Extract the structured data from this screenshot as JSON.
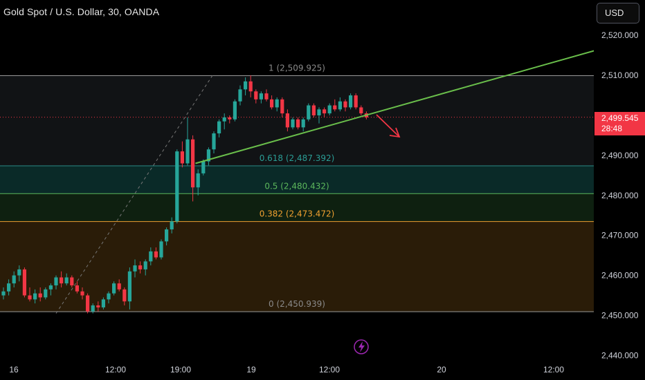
{
  "header": {
    "title": "Gold Spot / U.S. Dollar, 30, OANDA"
  },
  "toolbar": {
    "currency_label": "USD"
  },
  "last_price": {
    "price": "2,499.545",
    "countdown": "28:48"
  },
  "colors": {
    "background": "#000000",
    "up": "#26a69a",
    "down": "#f23645",
    "trendline": "#6abf4b",
    "fib_0618": "#2a8a86",
    "fib_05": "#5cb85c",
    "fib_0382": "#f0a030",
    "fib_edge": "#9a9a9a",
    "zone_upper": "#111315",
    "zone_0618_05": "#0a2a28",
    "zone_05_0382": "#0e2010",
    "zone_lower": "#2a1c08",
    "flash_icon": "#9c27b0"
  },
  "chart_data": {
    "type": "candlestick",
    "symbol": "Gold Spot / U.S. Dollar",
    "interval": "30",
    "source": "OANDA",
    "ylim": [
      2441,
      2523
    ],
    "y_ticks": [
      "2,440.000",
      "2,450.000",
      "2,460.000",
      "2,470.000",
      "2,480.000",
      "2,490.000",
      "2,500.000",
      "2,510.000",
      "2,520.000"
    ],
    "x_ticks": [
      "16",
      "12:00",
      "19:00",
      "19",
      "12:00",
      "20",
      "12:00"
    ],
    "fib_levels": [
      {
        "ratio": 1,
        "label": "1 (2,509.925)",
        "value": 2509.925
      },
      {
        "ratio": 0.618,
        "label": "0.618 (2,487.392)",
        "value": 2487.392
      },
      {
        "ratio": 0.5,
        "label": "0.5 (2,480.432)",
        "value": 2480.432
      },
      {
        "ratio": 0.382,
        "label": "0.382 (2,473.472)",
        "value": 2473.472
      },
      {
        "ratio": 0,
        "label": "0 (2,450.939)",
        "value": 2450.939
      }
    ],
    "last_price": 2499.545,
    "candles": [
      [
        2455.0,
        2457.0,
        2454.0,
        2456.0
      ],
      [
        2456.0,
        2459.0,
        2455.0,
        2458.0
      ],
      [
        2458.0,
        2461.0,
        2457.0,
        2460.0
      ],
      [
        2460.0,
        2462.5,
        2458.5,
        2461.5
      ],
      [
        2461.5,
        2462.0,
        2454.5,
        2455.0
      ],
      [
        2455.0,
        2457.0,
        2453.5,
        2454.0
      ],
      [
        2454.0,
        2456.5,
        2453.0,
        2455.5
      ],
      [
        2455.5,
        2457.0,
        2453.5,
        2454.5
      ],
      [
        2454.5,
        2457.0,
        2454.0,
        2456.5
      ],
      [
        2456.5,
        2458.0,
        2455.0,
        2457.5
      ],
      [
        2457.5,
        2460.0,
        2456.5,
        2459.5
      ],
      [
        2459.5,
        2461.0,
        2457.0,
        2458.0
      ],
      [
        2458.0,
        2460.5,
        2457.5,
        2459.5
      ],
      [
        2459.5,
        2460.0,
        2457.0,
        2457.5
      ],
      [
        2457.5,
        2458.5,
        2455.5,
        2456.0
      ],
      [
        2456.0,
        2457.0,
        2454.0,
        2455.0
      ],
      [
        2455.0,
        2455.5,
        2450.5,
        2451.0
      ],
      [
        2451.0,
        2453.0,
        2450.5,
        2452.5
      ],
      [
        2452.5,
        2453.5,
        2451.0,
        2452.0
      ],
      [
        2452.0,
        2454.5,
        2451.5,
        2454.0
      ],
      [
        2454.0,
        2456.0,
        2453.0,
        2455.5
      ],
      [
        2455.5,
        2458.5,
        2455.0,
        2458.0
      ],
      [
        2458.0,
        2459.0,
        2456.0,
        2456.5
      ],
      [
        2456.5,
        2457.0,
        2452.5,
        2453.5
      ],
      [
        2453.5,
        2462.0,
        2451.5,
        2461.0
      ],
      [
        2461.0,
        2464.0,
        2459.5,
        2462.5
      ],
      [
        2462.5,
        2463.5,
        2460.5,
        2461.5
      ],
      [
        2461.5,
        2464.0,
        2460.0,
        2463.5
      ],
      [
        2463.5,
        2467.0,
        2462.5,
        2466.0
      ],
      [
        2466.0,
        2467.0,
        2464.0,
        2464.5
      ],
      [
        2464.5,
        2469.0,
        2464.0,
        2468.5
      ],
      [
        2468.5,
        2472.0,
        2467.5,
        2471.5
      ],
      [
        2471.5,
        2474.5,
        2470.5,
        2473.5
      ],
      [
        2473.5,
        2491.5,
        2473.0,
        2491.0
      ],
      [
        2491.0,
        2493.5,
        2487.0,
        2488.0
      ],
      [
        2488.0,
        2499.5,
        2487.5,
        2494.0
      ],
      [
        2494.0,
        2495.0,
        2478.5,
        2482.0
      ],
      [
        2482.0,
        2486.5,
        2480.0,
        2485.5
      ],
      [
        2485.5,
        2489.0,
        2485.0,
        2488.5
      ],
      [
        2488.5,
        2492.0,
        2487.5,
        2491.5
      ],
      [
        2491.5,
        2496.0,
        2490.5,
        2495.5
      ],
      [
        2495.5,
        2499.0,
        2494.5,
        2498.5
      ],
      [
        2498.5,
        2500.5,
        2496.5,
        2499.5
      ],
      [
        2499.5,
        2500.0,
        2498.0,
        2499.0
      ],
      [
        2499.0,
        2504.0,
        2498.5,
        2503.5
      ],
      [
        2503.5,
        2507.5,
        2502.5,
        2506.5
      ],
      [
        2506.5,
        2509.5,
        2505.0,
        2508.5
      ],
      [
        2508.5,
        2510.0,
        2504.5,
        2506.0
      ],
      [
        2506.0,
        2506.5,
        2503.0,
        2504.0
      ],
      [
        2504.0,
        2506.0,
        2503.0,
        2505.5
      ],
      [
        2505.5,
        2506.5,
        2503.5,
        2504.0
      ],
      [
        2504.0,
        2505.0,
        2501.5,
        2502.0
      ],
      [
        2502.0,
        2504.5,
        2501.0,
        2504.0
      ],
      [
        2504.0,
        2504.5,
        2499.5,
        2500.5
      ],
      [
        2500.5,
        2501.5,
        2496.0,
        2497.0
      ],
      [
        2497.0,
        2499.5,
        2496.5,
        2499.0
      ],
      [
        2499.0,
        2499.5,
        2496.5,
        2497.0
      ],
      [
        2497.0,
        2499.5,
        2496.0,
        2499.0
      ],
      [
        2499.0,
        2503.0,
        2498.5,
        2502.5
      ],
      [
        2502.5,
        2503.0,
        2499.5,
        2500.0
      ],
      [
        2500.0,
        2502.0,
        2498.0,
        2501.5
      ],
      [
        2501.5,
        2502.0,
        2499.5,
        2500.5
      ],
      [
        2500.5,
        2503.0,
        2500.0,
        2502.5
      ],
      [
        2502.5,
        2504.0,
        2501.0,
        2501.5
      ],
      [
        2501.5,
        2504.5,
        2501.0,
        2503.5
      ],
      [
        2503.5,
        2504.0,
        2501.0,
        2502.0
      ],
      [
        2502.0,
        2505.5,
        2501.5,
        2505.0
      ],
      [
        2505.0,
        2505.5,
        2501.5,
        2502.0
      ],
      [
        2502.0,
        2502.5,
        2500.0,
        2500.5
      ],
      [
        2500.5,
        2501.0,
        2499.0,
        2499.5
      ]
    ],
    "trendline": {
      "from": [
        2488.0,
        36.5
      ],
      "to": [
        2520.5,
        124
      ]
    },
    "projection_dashes": {
      "from": [
        2450.5,
        10
      ],
      "to": [
        2510.5,
        40
      ]
    }
  }
}
